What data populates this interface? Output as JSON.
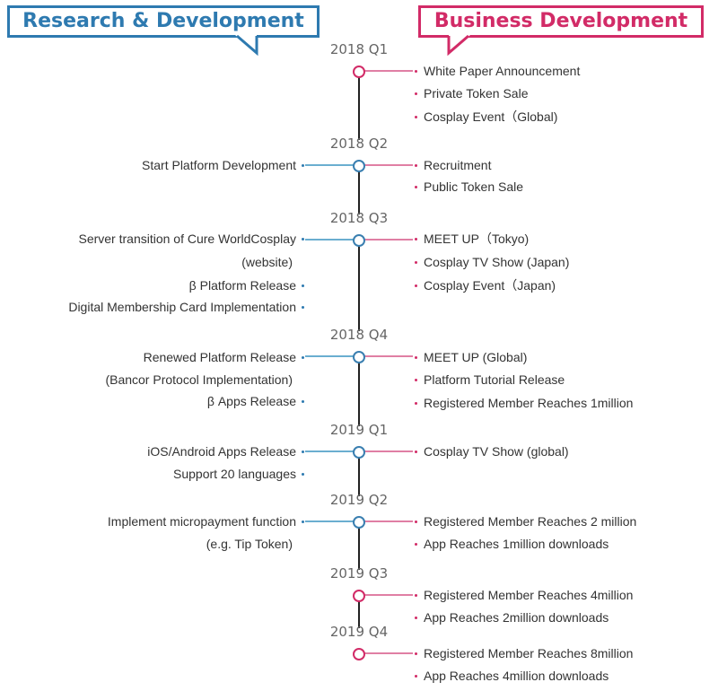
{
  "headers": {
    "research": "Research & Development",
    "business": "Business Development"
  },
  "colors": {
    "research": "#2e7ab0",
    "business": "#d22b67"
  },
  "quarters": [
    {
      "label": "2018 Q1",
      "research": [],
      "business": [
        "White Paper Announcement",
        "Private Token Sale",
        "Cosplay Event（Global)"
      ]
    },
    {
      "label": "2018 Q2",
      "research": [
        "Start Platform Development"
      ],
      "business": [
        "Recruitment",
        "Public Token Sale"
      ]
    },
    {
      "label": "2018 Q3",
      "research": [
        "Server transition of  Cure WorldCosplay",
        "(website)",
        "β Platform Release",
        "Digital Membership Card Implementation"
      ],
      "business": [
        "MEET UP（Tokyo)",
        "Cosplay TV Show (Japan)",
        "Cosplay Event（Japan)"
      ]
    },
    {
      "label": "2018 Q4",
      "research": [
        "Renewed Platform Release",
        "(Bancor Protocol Implementation)",
        "β Apps Release"
      ],
      "business": [
        "MEET UP (Global)",
        "Platform Tutorial Release",
        "Registered Member Reaches 1million"
      ]
    },
    {
      "label": "2019 Q1",
      "research": [
        "iOS/Android Apps Release",
        "Support 20 languages"
      ],
      "business": [
        "Cosplay TV Show (global)"
      ]
    },
    {
      "label": "2019 Q2",
      "research": [
        "Implement  micropayment function",
        "(e.g. Tip Token)"
      ],
      "business": [
        "Registered Member  Reaches 2 million",
        "App Reaches  1million downloads"
      ]
    },
    {
      "label": "2019 Q3",
      "research": [],
      "business": [
        "Registered Member Reaches 4million",
        "App Reaches 2million downloads"
      ]
    },
    {
      "label": "2019 Q4",
      "research": [],
      "business": [
        "Registered Member Reaches 8million",
        "App Reaches 4million downloads"
      ]
    }
  ]
}
